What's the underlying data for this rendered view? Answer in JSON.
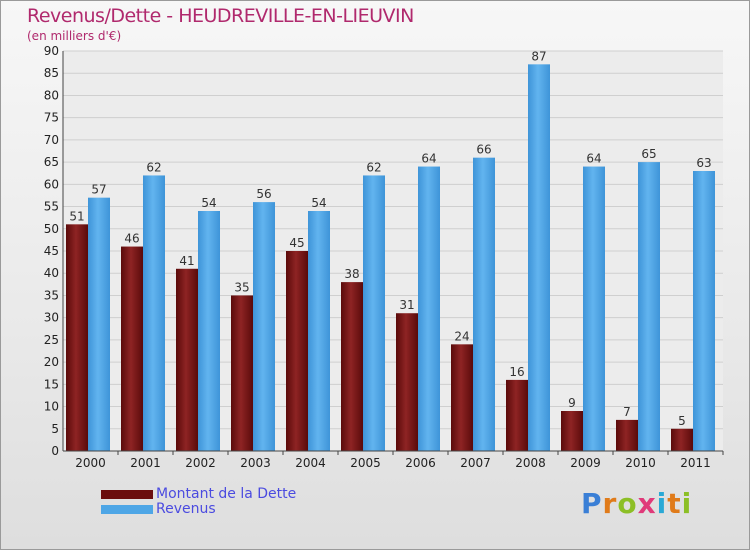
{
  "header": {
    "title": "Revenus/Dette - HEUDREVILLE-EN-LIEUVIN",
    "subtitle": "(en milliers d'€)"
  },
  "colors": {
    "dette": "#7a1414",
    "revenus": "#4ea6e6",
    "grid": "#cfcfcf",
    "axis_text": "#222222"
  },
  "chart_data": {
    "type": "bar",
    "categories": [
      "2000",
      "2001",
      "2002",
      "2003",
      "2004",
      "2005",
      "2006",
      "2007",
      "2008",
      "2009",
      "2010",
      "2011"
    ],
    "series": [
      {
        "name": "Montant de la Dette",
        "values": [
          51,
          46,
          41,
          35,
          45,
          38,
          31,
          24,
          16,
          9,
          7,
          5
        ]
      },
      {
        "name": "Revenus",
        "values": [
          57,
          62,
          54,
          56,
          54,
          62,
          64,
          66,
          87,
          64,
          65,
          63
        ]
      }
    ],
    "ylim": [
      0,
      90
    ],
    "yticks": [
      0,
      5,
      10,
      15,
      20,
      25,
      30,
      35,
      40,
      45,
      50,
      55,
      60,
      65,
      70,
      75,
      80,
      85,
      90
    ],
    "grid": true,
    "legend": "bottom-left"
  },
  "legend": {
    "items": [
      {
        "label": "Montant de la Dette"
      },
      {
        "label": "Revenus"
      }
    ]
  },
  "logo": {
    "letters": [
      "P",
      "r",
      "o",
      "x",
      "i",
      "t",
      "i"
    ],
    "colors": [
      "#3a7fd6",
      "#e07b1a",
      "#8cbf26",
      "#e03a7a",
      "#2aa9d6",
      "#e07b1a",
      "#8cbf26"
    ]
  }
}
